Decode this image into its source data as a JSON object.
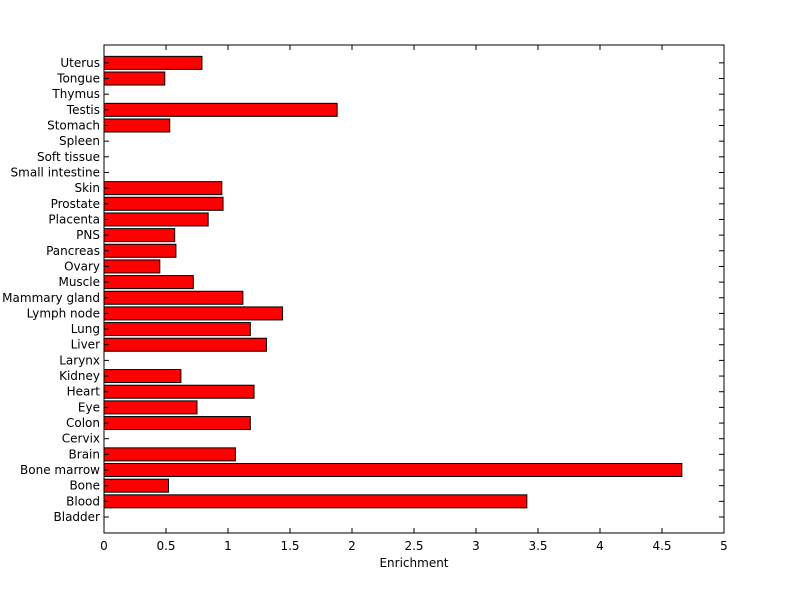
{
  "chart_data": {
    "type": "bar",
    "orientation": "horizontal",
    "categories": [
      "Bladder",
      "Blood",
      "Bone",
      "Bone marrow",
      "Brain",
      "Cervix",
      "Colon",
      "Eye",
      "Heart",
      "Kidney",
      "Larynx",
      "Liver",
      "Lung",
      "Lymph node",
      "Mammary gland",
      "Muscle",
      "Ovary",
      "Pancreas",
      "PNS",
      "Placenta",
      "Prostate",
      "Skin",
      "Small intestine",
      "Soft tissue",
      "Spleen",
      "Stomach",
      "Testis",
      "Thymus",
      "Tongue",
      "Uterus"
    ],
    "values": [
      0,
      3.41,
      0.52,
      4.66,
      1.06,
      0,
      1.18,
      0.75,
      1.21,
      0.62,
      0,
      1.31,
      1.18,
      1.44,
      1.12,
      0.72,
      0.45,
      0.58,
      0.57,
      0.84,
      0.96,
      0.95,
      0,
      0,
      0,
      0.53,
      1.88,
      0,
      0.49,
      0.79
    ],
    "xlabel": "Enrichment",
    "ylabel": "",
    "title": "",
    "xlim": [
      0,
      5
    ],
    "xticks": [
      "0",
      "0.5",
      "1",
      "1.5",
      "2",
      "2.5",
      "3",
      "3.5",
      "4",
      "4.5",
      "5"
    ],
    "grid": false,
    "bar_color": "#ff0000",
    "edge_color": "#000000"
  }
}
